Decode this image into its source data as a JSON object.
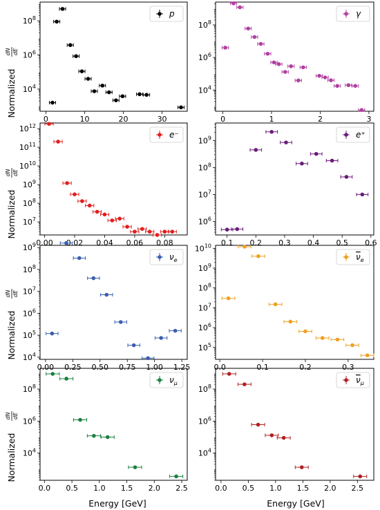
{
  "figure": {
    "ylabel_text": "Normalized",
    "ylabel_frac_num": "dN",
    "ylabel_frac_den": "dE",
    "xlabel": "Energy [GeV]"
  },
  "chart_data": [
    {
      "type": "scatter",
      "id": "p",
      "legend": "p",
      "color": "#000000",
      "xlim": [
        -1.5,
        36.5
      ],
      "ylog": true,
      "ylim_exp": [
        2.7,
        9.1
      ],
      "xticks": [
        0,
        10,
        20,
        30
      ],
      "yticks": [
        4,
        6,
        8
      ],
      "x": [
        1.7,
        2.8,
        4.3,
        6.3,
        7.8,
        9.3,
        10.9,
        12.5,
        14.6,
        16.3,
        18.1,
        19.8,
        24.2,
        26.0,
        34.9
      ],
      "y": [
        1600.0,
        90000000.0,
        500000000.0,
        3800000.0,
        850000.0,
        110000.0,
        40000.0,
        7500.0,
        16000.0,
        6500.0,
        2200.0,
        3800.0,
        5000.0,
        4600.0,
        850.0
      ],
      "xerr": 0.8
    },
    {
      "type": "scatter",
      "id": "gamma",
      "legend": "γ",
      "color": "#b040a0",
      "xlim": [
        -0.15,
        3.1
      ],
      "ylog": true,
      "ylim_exp": [
        2.7,
        9.4
      ],
      "xticks": [
        0,
        1,
        2,
        3
      ],
      "yticks": [
        4,
        6,
        8
      ],
      "x": [
        0.05,
        0.22,
        0.35,
        0.52,
        0.65,
        0.78,
        0.92,
        1.05,
        1.15,
        1.28,
        1.4,
        1.55,
        1.65,
        1.98,
        2.1,
        2.22,
        2.35,
        2.58,
        2.72,
        2.85
      ],
      "y": [
        4000000.0,
        2100000000.0,
        1200000000.0,
        60000000.0,
        18000000.0,
        6800000.0,
        1700000.0,
        500000.0,
        390000.0,
        130000.0,
        290000.0,
        39000.0,
        250000.0,
        75000.0,
        60000.0,
        40000.0,
        18000.0,
        20000.0,
        18000.0,
        600.0
      ],
      "xerr": 0.065
    },
    {
      "type": "scatter",
      "id": "e-",
      "legend": "e⁻",
      "color": "#e02020",
      "xlim": [
        -0.003,
        0.095
      ],
      "ylog": true,
      "ylim_exp": [
        6.3,
        12.3
      ],
      "xticks": [
        0.0,
        0.02,
        0.04,
        0.06,
        0.08
      ],
      "yticks": [
        7,
        8,
        9,
        10,
        11,
        12
      ],
      "x": [
        0.003,
        0.009,
        0.015,
        0.02,
        0.025,
        0.03,
        0.035,
        0.04,
        0.045,
        0.05,
        0.055,
        0.06,
        0.065,
        0.07,
        0.075,
        0.08,
        0.085
      ],
      "y": [
        1800000000000.0,
        200000000000.0,
        1200000000.0,
        300000000.0,
        130000000.0,
        75000000.0,
        35000000.0,
        25000000.0,
        12000000.0,
        15000000.0,
        5500000.0,
        3000000.0,
        4200000.0,
        3000000.0,
        2000000.0,
        3000000.0,
        3000000.0
      ],
      "xerr": 0.0028
    },
    {
      "type": "scatter",
      "id": "e+",
      "legend": "e⁺",
      "color": "#6a1b7a",
      "xlim": [
        0.06,
        0.61
      ],
      "ylog": true,
      "ylim_exp": [
        5.5,
        9.65
      ],
      "xticks": [
        0.1,
        0.2,
        0.3,
        0.4,
        0.5,
        0.6
      ],
      "yticks": [
        6,
        7,
        8,
        9
      ],
      "x": [
        0.1,
        0.135,
        0.2,
        0.255,
        0.305,
        0.36,
        0.41,
        0.465,
        0.515,
        0.57
      ],
      "y": [
        500000.0,
        520000.0,
        450000000.0,
        2100000000.0,
        850000000.0,
        140000000.0,
        320000000.0,
        180000000.0,
        45000000.0,
        10000000.0
      ],
      "xerr": 0.02
    },
    {
      "type": "scatter",
      "id": "nu_e",
      "legend": "ν",
      "legend_sub": "e",
      "color": "#3a5fb0",
      "xlim": [
        -0.05,
        1.3
      ],
      "ylog": true,
      "ylim_exp": [
        3.9,
        9.1
      ],
      "xticks": [
        0.0,
        0.25,
        0.5,
        0.75,
        1.0,
        1.25
      ],
      "yticks": [
        4,
        5,
        6,
        7,
        8,
        9
      ],
      "x": [
        0.06,
        0.19,
        0.31,
        0.44,
        0.56,
        0.69,
        0.81,
        0.94,
        1.06,
        1.19
      ],
      "y": [
        120000.0,
        1600000000.0,
        330000000.0,
        40000000.0,
        7000000.0,
        400000.0,
        35000.0,
        9000.0,
        75000.0,
        160000.0
      ],
      "xerr": 0.055
    },
    {
      "type": "scatter",
      "id": "nubar_e",
      "legend": "ν",
      "legend_sub": "e",
      "legend_bar": true,
      "color": "#f0a020",
      "xlim": [
        -0.01,
        0.36
      ],
      "ylog": true,
      "ylim_exp": [
        4.4,
        10.15
      ],
      "xticks": [
        0.0,
        0.1,
        0.2,
        0.3
      ],
      "yticks": [
        5,
        6,
        7,
        8,
        9,
        10
      ],
      "x": [
        0.02,
        0.058,
        0.09,
        0.13,
        0.165,
        0.2,
        0.24,
        0.275,
        0.31,
        0.345
      ],
      "y": [
        30000000.0,
        12000000000.0,
        4000000000.0,
        15000000.0,
        2000000.0,
        650000.0,
        300000.0,
        250000.0,
        130000.0,
        40000.0
      ],
      "xerr": 0.015
    },
    {
      "type": "scatter",
      "id": "nu_mu",
      "legend": "ν",
      "legend_sub": "μ",
      "color": "#1a8040",
      "xlim": [
        -0.08,
        2.6
      ],
      "ylog": true,
      "ylim_exp": [
        2.3,
        9.3
      ],
      "xticks": [
        0.0,
        0.5,
        1.0,
        1.5,
        2.0,
        2.5
      ],
      "yticks": [
        4,
        6,
        8
      ],
      "x": [
        0.15,
        0.4,
        0.65,
        0.9,
        1.15,
        1.65,
        2.4
      ],
      "y": [
        900000000.0,
        450000000.0,
        1200000.0,
        120000.0,
        100000.0,
        1300.0,
        350.0
      ],
      "xerr": 0.12
    },
    {
      "type": "scatter",
      "id": "nubar_mu",
      "legend": "ν",
      "legend_sub": "μ",
      "legend_bar": true,
      "color": "#b02020",
      "xlim": [
        -0.1,
        2.8
      ],
      "ylog": true,
      "ylim_exp": [
        2.3,
        9.3
      ],
      "xticks": [
        0.0,
        0.5,
        1.0,
        1.5,
        2.0,
        2.5
      ],
      "yticks": [
        4,
        6,
        8
      ],
      "x": [
        0.15,
        0.43,
        0.68,
        0.93,
        1.15,
        1.48,
        2.55
      ],
      "y": [
        900000000.0,
        200000000.0,
        600000.0,
        130000.0,
        90000.0,
        1300.0,
        350.0
      ],
      "xerr": 0.12
    }
  ]
}
